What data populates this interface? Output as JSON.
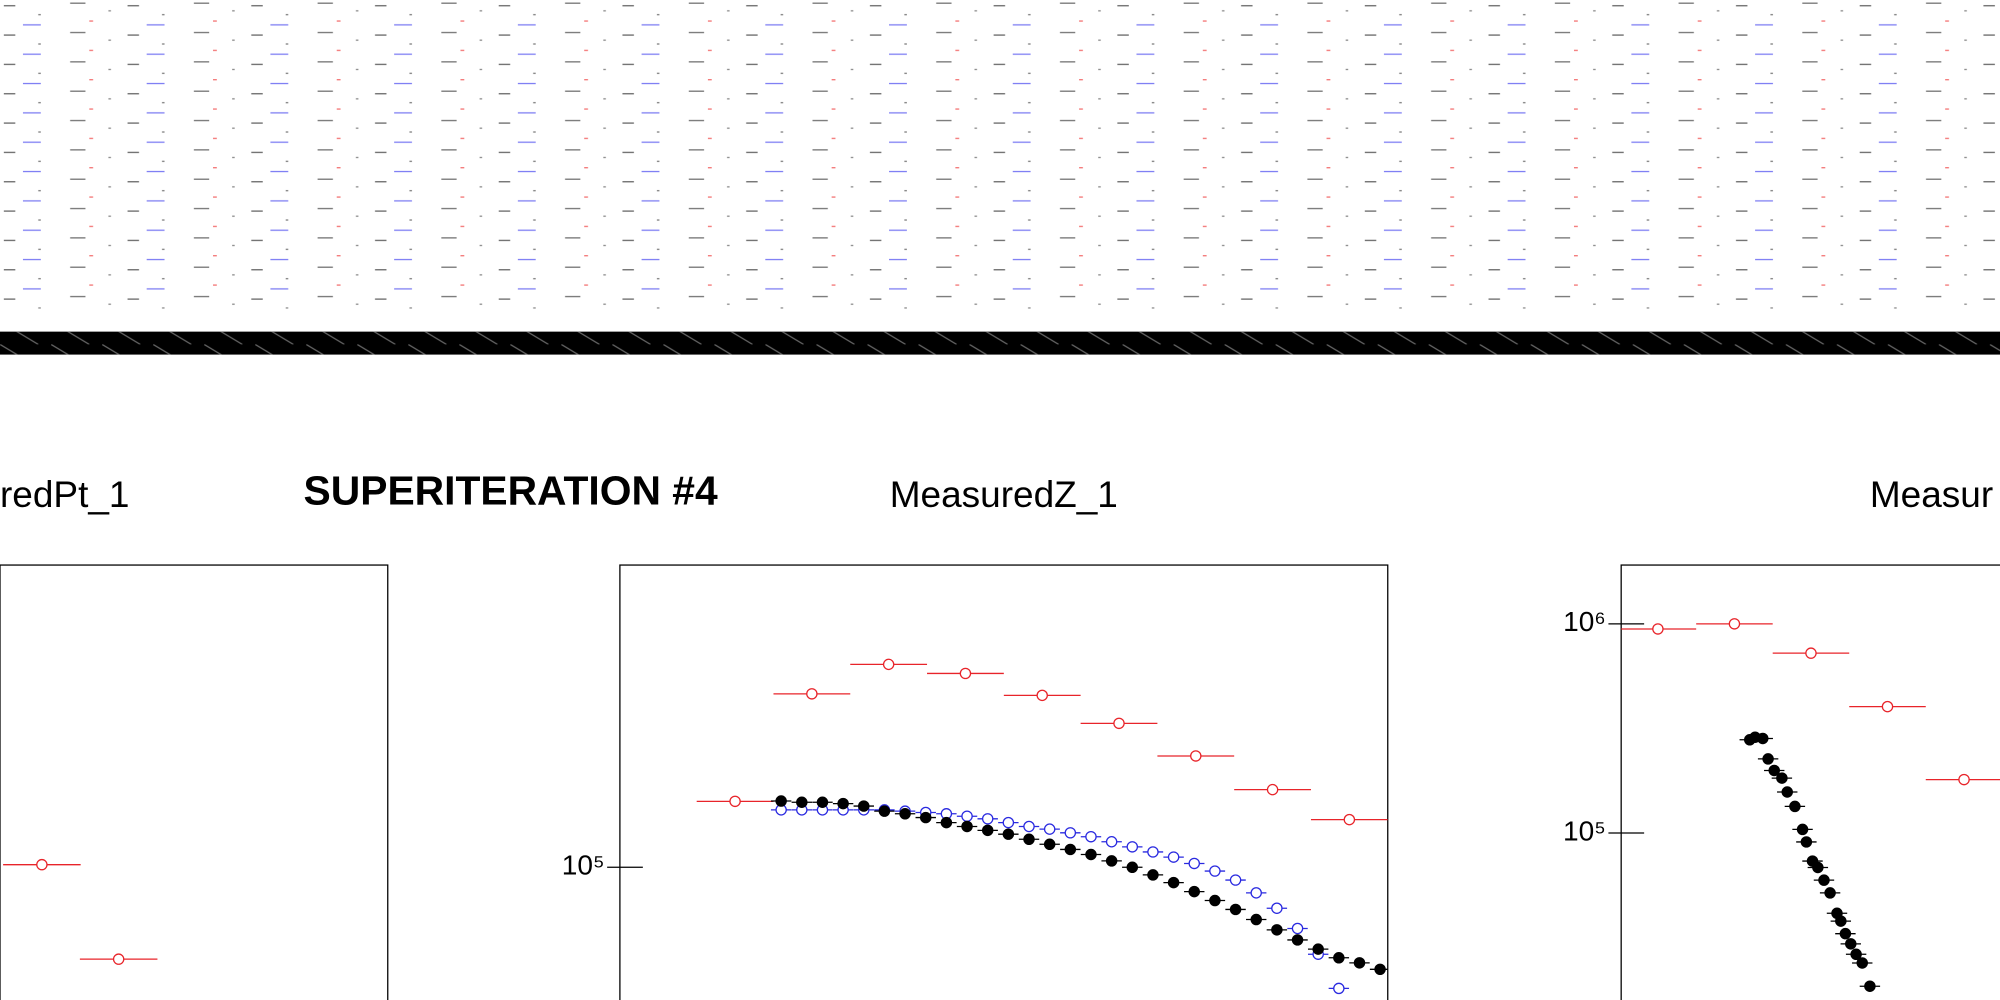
{
  "heading": "SUPERITERATION #4",
  "chart_data": [
    {
      "type": "scatter",
      "title": "redPt_1",
      "log_y": true,
      "xlim": [
        5,
        10
      ],
      "ylim": [
        42500,
        702000
      ],
      "yticks": [],
      "series": [
        {
          "color": "#e8242a",
          "marker": "open",
          "xerr": 0.5,
          "x": [
            5.54,
            6.53
          ],
          "values": [
            101700,
            55300
          ]
        }
      ]
    },
    {
      "type": "scatter",
      "title": "MeasuredZ_1",
      "log_y": true,
      "xlim": [
        0,
        10
      ],
      "ylim": [
        42500,
        702000
      ],
      "yticks": [
        {
          "value": 100000,
          "label": "10⁵"
        }
      ],
      "series": [
        {
          "color": "#e8242a",
          "marker": "open",
          "xerr": 0.5,
          "x": [
            1.5,
            2.5,
            3.5,
            4.5,
            5.5,
            6.5,
            7.5,
            8.5,
            9.5
          ],
          "values": [
            153000,
            306000,
            370000,
            349000,
            303000,
            253000,
            205000,
            165000,
            136000
          ]
        },
        {
          "color": "#2a2ae0",
          "marker": "open",
          "x": [
            2.1,
            2.369,
            2.638,
            2.907,
            3.176,
            3.445,
            3.714,
            3.983,
            4.252,
            4.521,
            4.79,
            5.059,
            5.328,
            5.597,
            5.866,
            6.135,
            6.404,
            6.673,
            6.942,
            7.211,
            7.48,
            7.749,
            8.018,
            8.287,
            8.556,
            8.825,
            9.094,
            9.363
          ],
          "values": [
            144800,
            144800,
            144800,
            144800,
            144800,
            144800,
            143600,
            142400,
            141200,
            139000,
            136700,
            133400,
            130100,
            127900,
            124900,
            121800,
            117900,
            114100,
            110400,
            106800,
            102500,
            97600,
            92100,
            84800,
            76800,
            67400,
            57100,
            45800
          ]
        },
        {
          "color": "#000000",
          "marker": "filled",
          "x": [
            2.1,
            2.369,
            2.638,
            2.907,
            3.176,
            3.445,
            3.714,
            3.983,
            4.252,
            4.521,
            4.79,
            5.059,
            5.328,
            5.597,
            5.866,
            6.135,
            6.404,
            6.673,
            6.942,
            7.211,
            7.48,
            7.749,
            8.018,
            8.287,
            8.556,
            8.825,
            9.094,
            9.363,
            9.632,
            9.9
          ],
          "values": [
            153300,
            152100,
            152100,
            150800,
            148400,
            143600,
            141200,
            137800,
            133400,
            130100,
            126900,
            123800,
            119800,
            116000,
            112200,
            108600,
            104200,
            100000,
            95200,
            90600,
            85500,
            80700,
            76200,
            71400,
            66800,
            62600,
            59000,
            55800,
            54000,
            51800
          ]
        }
      ]
    },
    {
      "type": "scatter",
      "title": "Measur",
      "log_y": true,
      "xlim": [
        0,
        5
      ],
      "ylim": [
        15900,
        1910000
      ],
      "yticks": [
        {
          "value": 100000,
          "label": "10⁵"
        },
        {
          "value": 1000000,
          "label": "10⁶"
        }
      ],
      "series": [
        {
          "color": "#e8242a",
          "marker": "open",
          "xerr": 0.5,
          "x": [
            0.48,
            1.48,
            2.48,
            3.48,
            4.48
          ],
          "values": [
            945000,
            1000000,
            724000,
            402000,
            180000
          ]
        },
        {
          "color": "#000000",
          "marker": "filled",
          "x": [
            1.68,
            1.75,
            1.85,
            1.92,
            2.0,
            2.1,
            2.17,
            2.27,
            2.37,
            2.42,
            2.5,
            2.57,
            2.65,
            2.73,
            2.82,
            2.87,
            2.93,
            3.0,
            3.07,
            3.15,
            3.25
          ],
          "values": [
            279000,
            287000,
            283000,
            226000,
            199000,
            183000,
            157000,
            134000,
            104000,
            90600,
            73400,
            68400,
            59500,
            51700,
            41300,
            37900,
            33000,
            29500,
            26300,
            23900,
            18500
          ]
        }
      ]
    }
  ]
}
